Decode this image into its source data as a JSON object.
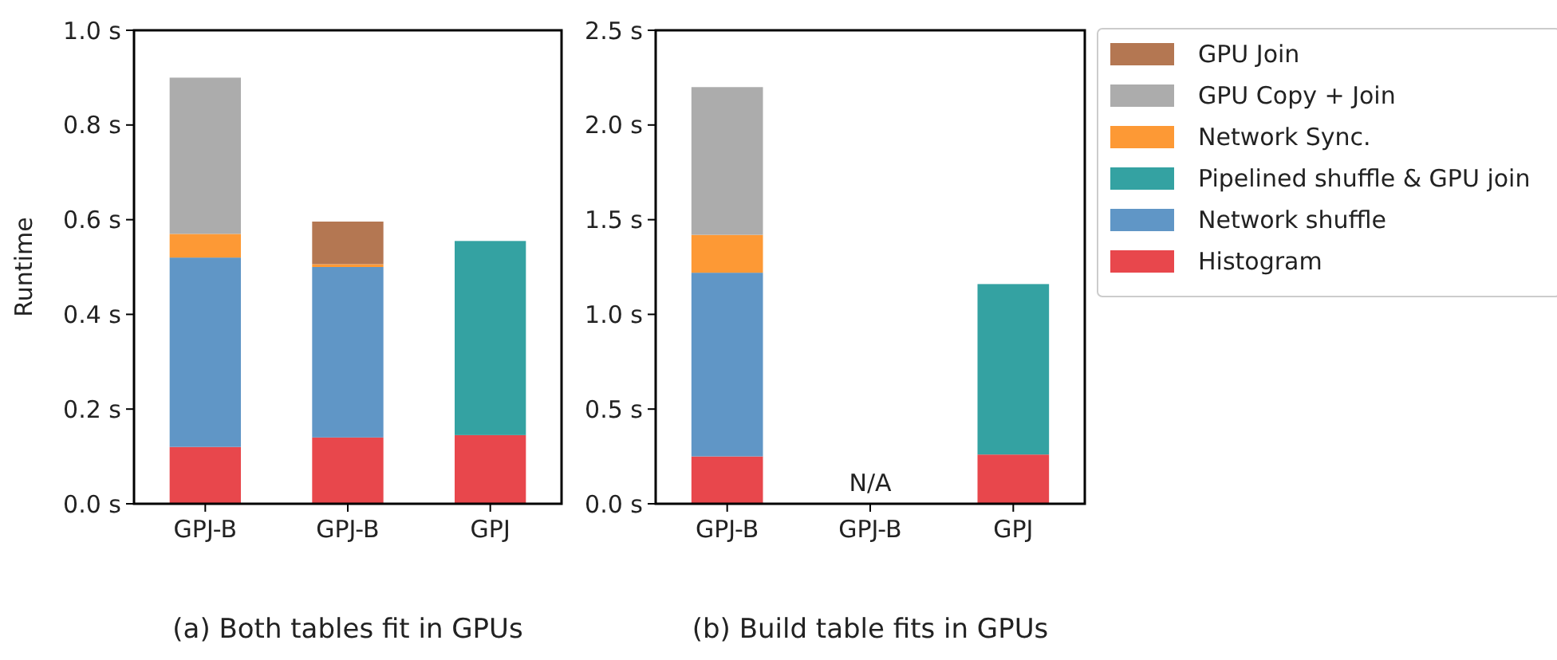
{
  "chart_data": [
    {
      "type": "bar",
      "title": "(a) Both tables fit in GPUs",
      "ylabel": "Runtime",
      "categories": [
        "GPJ-B",
        "GPJ-B",
        "GPJ"
      ],
      "stacked": true,
      "legend": false,
      "grid": false,
      "ylim": [
        0,
        1
      ],
      "yticks": [
        {
          "value": 0,
          "label": "0.0 s"
        },
        {
          "value": 0.2,
          "label": "0.2 s"
        },
        {
          "value": 0.4,
          "label": "0.4 s"
        },
        {
          "value": 0.6,
          "label": "0.6 s"
        },
        {
          "value": 0.8,
          "label": "0.8 s"
        },
        {
          "value": 1,
          "label": "1.0 s"
        }
      ],
      "series": [
        {
          "color": "#e8474c",
          "values": [
            0.12,
            0.14,
            0.145
          ]
        },
        {
          "color": "#6096c6",
          "values": [
            0.4,
            0.36,
            null
          ]
        },
        {
          "color": "#34a2a2",
          "values": [
            null,
            null,
            0.41
          ]
        },
        {
          "color": "#fd9935",
          "values": [
            0.05,
            0.006,
            null
          ]
        },
        {
          "color": "#acacac",
          "values": [
            0.33,
            null,
            null
          ]
        },
        {
          "color": "#b47752",
          "values": [
            null,
            0.09,
            null
          ]
        }
      ]
    },
    {
      "type": "bar",
      "title": "(b) Build table fits in GPUs",
      "categories": [
        "GPJ-B",
        "GPJ-B",
        "GPJ"
      ],
      "stacked": true,
      "legend": "right",
      "grid": false,
      "ylim": [
        0,
        2.5
      ],
      "yticks": [
        {
          "value": 0,
          "label": "0.0 s"
        },
        {
          "value": 0.5,
          "label": "0.5 s"
        },
        {
          "value": 1,
          "label": "1.0 s"
        },
        {
          "value": 1.5,
          "label": "1.5 s"
        },
        {
          "value": 2,
          "label": "2.0 s"
        },
        {
          "value": 2.5,
          "label": "2.5 s"
        }
      ],
      "annotations": [
        "N/A"
      ],
      "series": [
        {
          "name": "Histogram",
          "color": "#e8474c",
          "values": [
            0.25,
            null,
            0.26
          ]
        },
        {
          "name": "Network shuffle",
          "color": "#6096c6",
          "values": [
            0.97,
            null,
            null
          ]
        },
        {
          "name": "Pipelined shuffle & GPU join",
          "color": "#34a2a2",
          "values": [
            null,
            null,
            0.9
          ]
        },
        {
          "name": "Network Sync.",
          "color": "#fd9935",
          "values": [
            0.2,
            null,
            null
          ]
        },
        {
          "name": "GPU Copy + Join",
          "color": "#acacac",
          "values": [
            0.78,
            null,
            null
          ]
        },
        {
          "name": "GPU Join",
          "color": "#b47752",
          "values": [
            null,
            null,
            null
          ]
        }
      ]
    }
  ]
}
